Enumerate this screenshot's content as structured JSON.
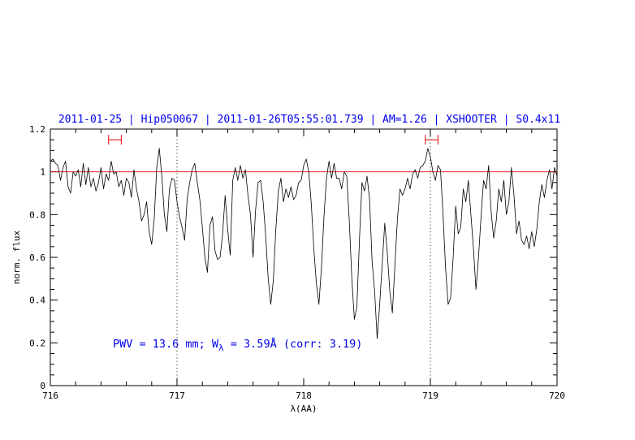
{
  "chart_data": {
    "type": "line",
    "title": "2011-01-25 | Hip050067 | 2011-01-26T05:55:01.739 | AM=1.26 | XSHOOTER | S0.4x11",
    "xlabel": "λ(AA)",
    "ylabel": "norm. flux",
    "xlim": [
      716,
      720
    ],
    "ylim": [
      0,
      1.2
    ],
    "x_ticks": [
      "716",
      "717",
      "718",
      "719",
      "720"
    ],
    "y_ticks": [
      "0",
      "0.2",
      "0.4",
      "0.6",
      "0.8",
      "1",
      "1.2"
    ],
    "continuum_level": 1.0,
    "continuum_color": "#e00000",
    "vertical_markers": [
      717.0,
      719.0
    ],
    "continuum_windows": [
      {
        "from": 716.46,
        "to": 716.56
      },
      {
        "from": 718.96,
        "to": 719.06
      }
    ],
    "annotation": {
      "pwv": "PWV = 13.6 mm; W",
      "lambda_sub": "λ",
      "rest": " = 3.59Å (corr: 3.19)"
    },
    "series": [
      {
        "color": "#000000",
        "points": [
          [
            716.0,
            1.05
          ],
          [
            716.02,
            1.06
          ],
          [
            716.04,
            1.04
          ],
          [
            716.06,
            1.03
          ],
          [
            716.08,
            0.96
          ],
          [
            716.1,
            1.02
          ],
          [
            716.12,
            1.05
          ],
          [
            716.14,
            0.93
          ],
          [
            716.16,
            0.9
          ],
          [
            716.18,
            1.0
          ],
          [
            716.2,
            0.98
          ],
          [
            716.22,
            1.01
          ],
          [
            716.24,
            0.93
          ],
          [
            716.26,
            1.04
          ],
          [
            716.28,
            0.94
          ],
          [
            716.3,
            1.02
          ],
          [
            716.32,
            0.93
          ],
          [
            716.34,
            0.97
          ],
          [
            716.36,
            0.91
          ],
          [
            716.38,
            0.95
          ],
          [
            716.4,
            1.02
          ],
          [
            716.42,
            0.92
          ],
          [
            716.44,
            0.99
          ],
          [
            716.46,
            0.96
          ],
          [
            716.48,
            1.05
          ],
          [
            716.5,
            0.99
          ],
          [
            716.52,
            1.0
          ],
          [
            716.54,
            0.93
          ],
          [
            716.56,
            0.96
          ],
          [
            716.58,
            0.89
          ],
          [
            716.6,
            0.97
          ],
          [
            716.62,
            0.95
          ],
          [
            716.64,
            0.88
          ],
          [
            716.66,
            1.01
          ],
          [
            716.68,
            0.92
          ],
          [
            716.7,
            0.86
          ],
          [
            716.72,
            0.77
          ],
          [
            716.74,
            0.8
          ],
          [
            716.76,
            0.86
          ],
          [
            716.78,
            0.72
          ],
          [
            716.8,
            0.66
          ],
          [
            716.82,
            0.78
          ],
          [
            716.84,
            1.02
          ],
          [
            716.86,
            1.11
          ],
          [
            716.88,
            0.98
          ],
          [
            716.9,
            0.8
          ],
          [
            716.92,
            0.72
          ],
          [
            716.94,
            0.92
          ],
          [
            716.96,
            0.97
          ],
          [
            716.98,
            0.96
          ],
          [
            717.0,
            0.86
          ],
          [
            717.02,
            0.79
          ],
          [
            717.04,
            0.74
          ],
          [
            717.06,
            0.68
          ],
          [
            717.08,
            0.87
          ],
          [
            717.1,
            0.95
          ],
          [
            717.12,
            1.01
          ],
          [
            717.14,
            1.04
          ],
          [
            717.16,
            0.95
          ],
          [
            717.18,
            0.87
          ],
          [
            717.2,
            0.74
          ],
          [
            717.22,
            0.6
          ],
          [
            717.24,
            0.53
          ],
          [
            717.26,
            0.75
          ],
          [
            717.28,
            0.79
          ],
          [
            717.3,
            0.63
          ],
          [
            717.32,
            0.59
          ],
          [
            717.34,
            0.6
          ],
          [
            717.36,
            0.71
          ],
          [
            717.38,
            0.89
          ],
          [
            717.4,
            0.73
          ],
          [
            717.42,
            0.61
          ],
          [
            717.44,
            0.96
          ],
          [
            717.46,
            1.02
          ],
          [
            717.48,
            0.96
          ],
          [
            717.5,
            1.03
          ],
          [
            717.52,
            0.97
          ],
          [
            717.54,
            1.01
          ],
          [
            717.56,
            0.89
          ],
          [
            717.58,
            0.8
          ],
          [
            717.6,
            0.6
          ],
          [
            717.62,
            0.82
          ],
          [
            717.64,
            0.95
          ],
          [
            717.66,
            0.96
          ],
          [
            717.68,
            0.86
          ],
          [
            717.7,
            0.7
          ],
          [
            717.72,
            0.5
          ],
          [
            717.74,
            0.38
          ],
          [
            717.76,
            0.49
          ],
          [
            717.78,
            0.73
          ],
          [
            717.8,
            0.91
          ],
          [
            717.82,
            0.97
          ],
          [
            717.84,
            0.86
          ],
          [
            717.86,
            0.92
          ],
          [
            717.88,
            0.88
          ],
          [
            717.9,
            0.93
          ],
          [
            717.92,
            0.87
          ],
          [
            717.94,
            0.89
          ],
          [
            717.96,
            0.95
          ],
          [
            717.98,
            0.96
          ],
          [
            718.0,
            1.03
          ],
          [
            718.02,
            1.06
          ],
          [
            718.04,
            1.0
          ],
          [
            718.06,
            0.85
          ],
          [
            718.08,
            0.64
          ],
          [
            718.1,
            0.48
          ],
          [
            718.12,
            0.38
          ],
          [
            718.14,
            0.55
          ],
          [
            718.16,
            0.79
          ],
          [
            718.18,
            0.97
          ],
          [
            718.2,
            1.05
          ],
          [
            718.22,
            0.97
          ],
          [
            718.24,
            1.04
          ],
          [
            718.26,
            0.97
          ],
          [
            718.28,
            0.97
          ],
          [
            718.3,
            0.92
          ],
          [
            718.32,
            1.0
          ],
          [
            718.34,
            0.98
          ],
          [
            718.36,
            0.77
          ],
          [
            718.38,
            0.5
          ],
          [
            718.4,
            0.31
          ],
          [
            718.42,
            0.37
          ],
          [
            718.44,
            0.68
          ],
          [
            718.46,
            0.95
          ],
          [
            718.48,
            0.91
          ],
          [
            718.5,
            0.98
          ],
          [
            718.52,
            0.87
          ],
          [
            718.54,
            0.58
          ],
          [
            718.56,
            0.44
          ],
          [
            718.58,
            0.22
          ],
          [
            718.6,
            0.38
          ],
          [
            718.62,
            0.57
          ],
          [
            718.64,
            0.76
          ],
          [
            718.66,
            0.62
          ],
          [
            718.68,
            0.44
          ],
          [
            718.7,
            0.34
          ],
          [
            718.72,
            0.56
          ],
          [
            718.74,
            0.78
          ],
          [
            718.76,
            0.92
          ],
          [
            718.78,
            0.89
          ],
          [
            718.8,
            0.92
          ],
          [
            718.82,
            0.97
          ],
          [
            718.84,
            0.92
          ],
          [
            718.86,
            0.99
          ],
          [
            718.88,
            1.01
          ],
          [
            718.9,
            0.97
          ],
          [
            718.92,
            1.02
          ],
          [
            718.94,
            1.03
          ],
          [
            718.96,
            1.05
          ],
          [
            718.98,
            1.11
          ],
          [
            719.0,
            1.07
          ],
          [
            719.02,
            1.0
          ],
          [
            719.04,
            0.96
          ],
          [
            719.06,
            1.03
          ],
          [
            719.08,
            1.01
          ],
          [
            719.1,
            0.8
          ],
          [
            719.12,
            0.55
          ],
          [
            719.14,
            0.38
          ],
          [
            719.16,
            0.41
          ],
          [
            719.18,
            0.6
          ],
          [
            719.2,
            0.84
          ],
          [
            719.22,
            0.71
          ],
          [
            719.24,
            0.74
          ],
          [
            719.26,
            0.92
          ],
          [
            719.28,
            0.86
          ],
          [
            719.3,
            0.96
          ],
          [
            719.32,
            0.8
          ],
          [
            719.34,
            0.64
          ],
          [
            719.36,
            0.45
          ],
          [
            719.38,
            0.6
          ],
          [
            719.4,
            0.79
          ],
          [
            719.42,
            0.96
          ],
          [
            719.44,
            0.92
          ],
          [
            719.46,
            1.03
          ],
          [
            719.48,
            0.81
          ],
          [
            719.5,
            0.69
          ],
          [
            719.52,
            0.77
          ],
          [
            719.54,
            0.92
          ],
          [
            719.56,
            0.86
          ],
          [
            719.58,
            0.96
          ],
          [
            719.6,
            0.8
          ],
          [
            719.62,
            0.86
          ],
          [
            719.64,
            1.02
          ],
          [
            719.66,
            0.89
          ],
          [
            719.68,
            0.71
          ],
          [
            719.7,
            0.77
          ],
          [
            719.72,
            0.68
          ],
          [
            719.74,
            0.66
          ],
          [
            719.76,
            0.7
          ],
          [
            719.78,
            0.64
          ],
          [
            719.8,
            0.72
          ],
          [
            719.82,
            0.65
          ],
          [
            719.84,
            0.73
          ],
          [
            719.86,
            0.86
          ],
          [
            719.88,
            0.94
          ],
          [
            719.9,
            0.88
          ],
          [
            719.92,
            0.96
          ],
          [
            719.94,
            1.01
          ],
          [
            719.96,
            0.92
          ],
          [
            719.98,
            1.02
          ],
          [
            720.0,
            0.98
          ]
        ]
      }
    ]
  }
}
